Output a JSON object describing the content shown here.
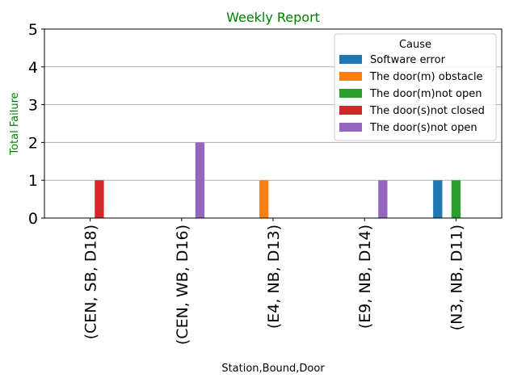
{
  "chart_data": {
    "type": "bar",
    "title": "Weekly Report",
    "xlabel": "Station,Bound,Door",
    "ylabel": "Total Failure",
    "ylim": [
      0,
      5
    ],
    "yticks": [
      0,
      1,
      2,
      3,
      4,
      5
    ],
    "grid": "y",
    "legend_title": "Cause",
    "legend_position": "top-right",
    "categories": [
      "(CEN, SB, D18)",
      "(CEN, WB, D16)",
      "(E4, NB, D13)",
      "(E9, NB, D14)",
      "(N3, NB, D11)"
    ],
    "series": [
      {
        "name": "Software error",
        "color": "#1f77b4",
        "values": [
          0,
          0,
          0,
          0,
          1
        ]
      },
      {
        "name": "The door(m) obstacle",
        "color": "#ff7f0e",
        "values": [
          0,
          0,
          1,
          0,
          0
        ]
      },
      {
        "name": "The door(m)not open",
        "color": "#2ca02c",
        "values": [
          0,
          0,
          0,
          0,
          1
        ]
      },
      {
        "name": "The door(s)not closed",
        "color": "#d62728",
        "values": [
          1,
          0,
          0,
          0,
          0
        ]
      },
      {
        "name": "The door(s)not open",
        "color": "#9467bd",
        "values": [
          0,
          2,
          0,
          1,
          0
        ]
      }
    ]
  }
}
